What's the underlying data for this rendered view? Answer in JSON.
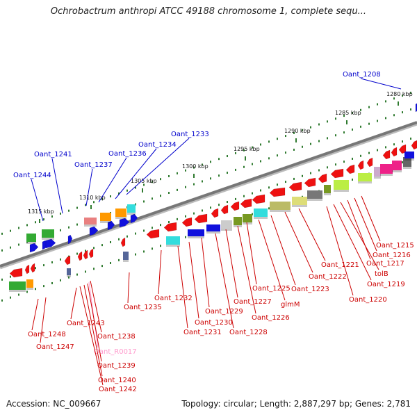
{
  "title": "Ochrobactrum anthropi ATCC 49188 chromosome 1, complete sequ...",
  "footer": {
    "accession": "Accession: NC_009667",
    "summary": "Topology: circular; Length: 2,887,297 bp; Genes: 2,781"
  },
  "colors": {
    "forward_gene_label": "#0000cc",
    "reverse_gene_label": "#cc0000",
    "rna_label": "#ff99cc",
    "backbone": "#777777",
    "tick_dot": "#2f7a2f"
  },
  "scale_ticks": [
    "1280 kbp",
    "1285 kbp",
    "1290 kbp",
    "1295 kbp",
    "1300 kbp",
    "1305 kbp",
    "1310 kbp",
    "1315 kbp"
  ],
  "forward_gene_labels": [
    "Oant_1208",
    "Oant_1233",
    "Oant_1234",
    "Oant_1236",
    "Oant_1237",
    "Oant_1241",
    "Oant_1244"
  ],
  "reverse_gene_labels": [
    "Oant_1215",
    "Oant_1216",
    "Oant_1217",
    "tolB",
    "Oant_1219",
    "Oant_1220",
    "Oant_1221",
    "Oant_1222",
    "Oant_1223",
    "glmM",
    "Oant_1225",
    "Oant_1226",
    "Oant_1227",
    "Oant_1228",
    "Oant_1229",
    "Oant_1230",
    "Oant_1231",
    "Oant_1232",
    "Oant_1235",
    "Oant_1243",
    "Oant_1238",
    "Oant_R0017",
    "Oant_1239",
    "Oant_1240",
    "Oant_1242",
    "Oant_1248",
    "Oant_1247"
  ],
  "rna_gene_labels": [
    "Oant_R0017"
  ]
}
